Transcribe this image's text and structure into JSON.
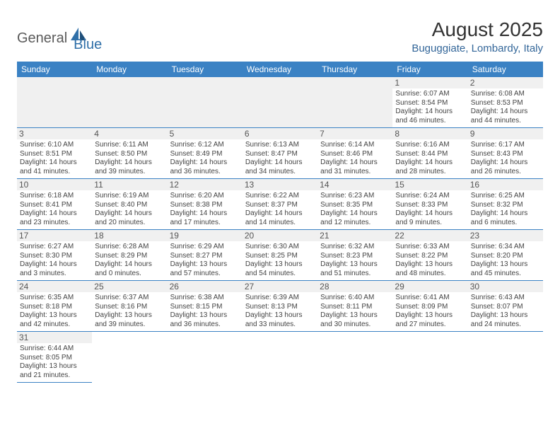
{
  "logo": {
    "general": "General",
    "blue": "Blue"
  },
  "title": {
    "month": "August 2025",
    "location": "Buguggiate, Lombardy, Italy"
  },
  "colors": {
    "header_bg": "#3b82c4",
    "header_text": "#ffffff",
    "cell_rule": "#3b82c4",
    "daynum_bg": "#f0f0f0",
    "daynum_text": "#555555",
    "body_text": "#444444",
    "logo_blue": "#2f6fa8",
    "title_loc": "#336699"
  },
  "dayNames": [
    "Sunday",
    "Monday",
    "Tuesday",
    "Wednesday",
    "Thursday",
    "Friday",
    "Saturday"
  ],
  "grid": {
    "startOffset": 5,
    "days": [
      {
        "n": 1,
        "sunrise": "6:07 AM",
        "sunset": "8:54 PM",
        "daylight": "14 hours and 46 minutes."
      },
      {
        "n": 2,
        "sunrise": "6:08 AM",
        "sunset": "8:53 PM",
        "daylight": "14 hours and 44 minutes."
      },
      {
        "n": 3,
        "sunrise": "6:10 AM",
        "sunset": "8:51 PM",
        "daylight": "14 hours and 41 minutes."
      },
      {
        "n": 4,
        "sunrise": "6:11 AM",
        "sunset": "8:50 PM",
        "daylight": "14 hours and 39 minutes."
      },
      {
        "n": 5,
        "sunrise": "6:12 AM",
        "sunset": "8:49 PM",
        "daylight": "14 hours and 36 minutes."
      },
      {
        "n": 6,
        "sunrise": "6:13 AM",
        "sunset": "8:47 PM",
        "daylight": "14 hours and 34 minutes."
      },
      {
        "n": 7,
        "sunrise": "6:14 AM",
        "sunset": "8:46 PM",
        "daylight": "14 hours and 31 minutes."
      },
      {
        "n": 8,
        "sunrise": "6:16 AM",
        "sunset": "8:44 PM",
        "daylight": "14 hours and 28 minutes."
      },
      {
        "n": 9,
        "sunrise": "6:17 AM",
        "sunset": "8:43 PM",
        "daylight": "14 hours and 26 minutes."
      },
      {
        "n": 10,
        "sunrise": "6:18 AM",
        "sunset": "8:41 PM",
        "daylight": "14 hours and 23 minutes."
      },
      {
        "n": 11,
        "sunrise": "6:19 AM",
        "sunset": "8:40 PM",
        "daylight": "14 hours and 20 minutes."
      },
      {
        "n": 12,
        "sunrise": "6:20 AM",
        "sunset": "8:38 PM",
        "daylight": "14 hours and 17 minutes."
      },
      {
        "n": 13,
        "sunrise": "6:22 AM",
        "sunset": "8:37 PM",
        "daylight": "14 hours and 14 minutes."
      },
      {
        "n": 14,
        "sunrise": "6:23 AM",
        "sunset": "8:35 PM",
        "daylight": "14 hours and 12 minutes."
      },
      {
        "n": 15,
        "sunrise": "6:24 AM",
        "sunset": "8:33 PM",
        "daylight": "14 hours and 9 minutes."
      },
      {
        "n": 16,
        "sunrise": "6:25 AM",
        "sunset": "8:32 PM",
        "daylight": "14 hours and 6 minutes."
      },
      {
        "n": 17,
        "sunrise": "6:27 AM",
        "sunset": "8:30 PM",
        "daylight": "14 hours and 3 minutes."
      },
      {
        "n": 18,
        "sunrise": "6:28 AM",
        "sunset": "8:29 PM",
        "daylight": "14 hours and 0 minutes."
      },
      {
        "n": 19,
        "sunrise": "6:29 AM",
        "sunset": "8:27 PM",
        "daylight": "13 hours and 57 minutes."
      },
      {
        "n": 20,
        "sunrise": "6:30 AM",
        "sunset": "8:25 PM",
        "daylight": "13 hours and 54 minutes."
      },
      {
        "n": 21,
        "sunrise": "6:32 AM",
        "sunset": "8:23 PM",
        "daylight": "13 hours and 51 minutes."
      },
      {
        "n": 22,
        "sunrise": "6:33 AM",
        "sunset": "8:22 PM",
        "daylight": "13 hours and 48 minutes."
      },
      {
        "n": 23,
        "sunrise": "6:34 AM",
        "sunset": "8:20 PM",
        "daylight": "13 hours and 45 minutes."
      },
      {
        "n": 24,
        "sunrise": "6:35 AM",
        "sunset": "8:18 PM",
        "daylight": "13 hours and 42 minutes."
      },
      {
        "n": 25,
        "sunrise": "6:37 AM",
        "sunset": "8:16 PM",
        "daylight": "13 hours and 39 minutes."
      },
      {
        "n": 26,
        "sunrise": "6:38 AM",
        "sunset": "8:15 PM",
        "daylight": "13 hours and 36 minutes."
      },
      {
        "n": 27,
        "sunrise": "6:39 AM",
        "sunset": "8:13 PM",
        "daylight": "13 hours and 33 minutes."
      },
      {
        "n": 28,
        "sunrise": "6:40 AM",
        "sunset": "8:11 PM",
        "daylight": "13 hours and 30 minutes."
      },
      {
        "n": 29,
        "sunrise": "6:41 AM",
        "sunset": "8:09 PM",
        "daylight": "13 hours and 27 minutes."
      },
      {
        "n": 30,
        "sunrise": "6:43 AM",
        "sunset": "8:07 PM",
        "daylight": "13 hours and 24 minutes."
      },
      {
        "n": 31,
        "sunrise": "6:44 AM",
        "sunset": "8:05 PM",
        "daylight": "13 hours and 21 minutes."
      }
    ]
  },
  "labels": {
    "sunrise": "Sunrise:",
    "sunset": "Sunset:",
    "daylight": "Daylight:"
  }
}
